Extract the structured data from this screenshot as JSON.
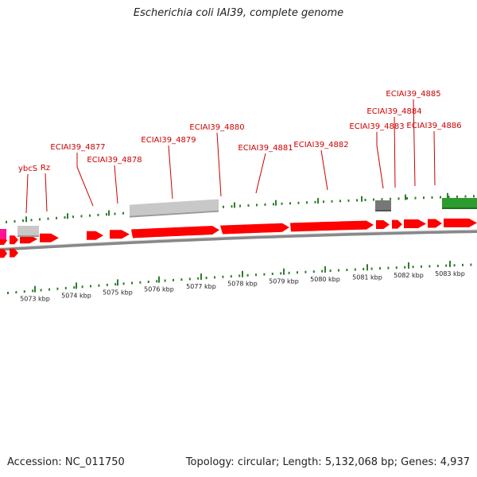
{
  "header": {
    "title": "Escherichia coli IAI39, complete genome"
  },
  "footer": {
    "accession_label": "Accession:",
    "accession": "NC_011750",
    "topology_label": "Topology:",
    "topology": "circular",
    "length_label": "Length:",
    "length": "5,132,068 bp",
    "genes_label": "Genes:",
    "genes": "4,937"
  },
  "colors": {
    "gene": "#ff0000",
    "pseudo_gene": "#c8c8c8",
    "dark_gene": "#777777",
    "rna_gene": "#2e9b2e",
    "magenta_gene": "#ff1493",
    "label": "#cc0000",
    "tick": "#2e7d2e",
    "backbone": "#888888"
  },
  "chart_data": {
    "type": "genome_map",
    "gene_labels": [
      "ybcS",
      "Rz",
      "ECIAI39_4877",
      "ECIAI39_4878",
      "ECIAI39_4879",
      "ECIAI39_4880",
      "ECIAI39_4881",
      "ECIAI39_4882",
      "ECIAI39_4883",
      "ECIAI39_4884",
      "ECIAI39_4885",
      "ECIAI39_4886"
    ],
    "scale_labels": [
      "5073 kbp",
      "5074 kbp",
      "5075 kbp",
      "5076 kbp",
      "5077 kbp",
      "5078 kbp",
      "5079 kbp",
      "5080 kbp",
      "5081 kbp",
      "5082 kbp",
      "5083 kbp"
    ]
  }
}
